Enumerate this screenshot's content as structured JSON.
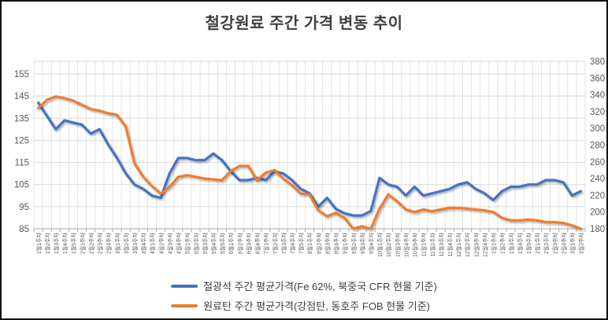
{
  "title": "철강원료 주간 가격 변동 추이",
  "legend": [
    {
      "id": "iron-ore",
      "label": "철광석 주간 평균가격(Fe 62%, 북중국 CFR 현물 기준)",
      "color": "#4472C4"
    },
    {
      "id": "coking-coal",
      "label": "원료탄 주간 평균가격(강점탄, 동호주 FOB 현물 기준)",
      "color": "#ED7D31"
    }
  ],
  "chart_data": {
    "type": "line",
    "title": "철강원료 주간 가격 변동 추이",
    "grid": true,
    "legend_position": "bottom",
    "x_labels": [
      "1월1주차",
      "1월2주차",
      "1월3주차",
      "1월4주차",
      "1월5주차",
      "2월1주차",
      "2월2주차",
      "2월3주차",
      "2월4주차",
      "3월1주차",
      "3월2주차",
      "3월3주차",
      "3월4주차",
      "4월1주차",
      "4월2주차",
      "4월3주차",
      "4월4주차",
      "5월1주차",
      "5월2주차",
      "5월3주차",
      "5월4주차",
      "5월5주차",
      "6월1주차",
      "6월2주차",
      "6월3주차",
      "6월4주차",
      "7월1주차",
      "7월2주차",
      "7월3주차",
      "7월4주차",
      "7월5주차",
      "8월1주차",
      "8월2주차",
      "8월3주차",
      "8월4주차",
      "9월1주차",
      "9월2주차",
      "9월3주차",
      "9월4주차",
      "10월1주차",
      "10월2주차",
      "10월3주차",
      "10월4주차",
      "10월5주차",
      "11월1주차",
      "11월2주차",
      "11월3주차",
      "11월4주차",
      "12월1주차",
      "12월2주차",
      "12월3주차",
      "12월4주차",
      "1월1주차",
      "1월2주차",
      "1월3주차",
      "1월4주차",
      "1월5주차",
      "2월1주차",
      "2월2주차",
      "2월3주차",
      "2월4주차",
      "3월1주차",
      "3월2주차"
    ],
    "left_axis": {
      "min": 85,
      "max": 155,
      "step": 10
    },
    "right_axis": {
      "min": 180,
      "max": 380,
      "step": 20
    },
    "series": [
      {
        "id": "iron-ore-series-line",
        "name": "철광석 주간 평균가격(Fe 62%, 북중국 CFR 현물 기준)",
        "axis": "left",
        "color": "#4472C4",
        "values": [
          142,
          136,
          130,
          134,
          133,
          132,
          128,
          130,
          123,
          117,
          110,
          105,
          103,
          100,
          99,
          110,
          117,
          117,
          116,
          116,
          119,
          116,
          111,
          107,
          107,
          108,
          107,
          111,
          110,
          107,
          103,
          101,
          95,
          99,
          94,
          92,
          91,
          91,
          93,
          108,
          105,
          104,
          100,
          104,
          100,
          101,
          102,
          103,
          105,
          106,
          103,
          101,
          98,
          102,
          104,
          104,
          105,
          105,
          107,
          107,
          106,
          100,
          102
        ]
      },
      {
        "id": "coking-coal-series-line",
        "name": "원료탄 주간 평균가격(강점탄, 동호주 FOB 현물 기준)",
        "axis": "right",
        "color": "#ED7D31",
        "values": [
          324,
          334,
          338,
          336,
          333,
          328,
          323,
          321,
          318,
          316,
          302,
          258,
          242,
          231,
          222,
          230,
          242,
          244,
          242,
          240,
          239,
          238,
          249,
          255,
          255,
          238,
          247,
          250,
          240,
          232,
          222,
          221,
          202,
          195,
          199,
          193,
          180,
          183,
          180,
          204,
          221,
          213,
          203,
          200,
          203,
          201,
          203,
          205,
          205,
          204,
          203,
          202,
          200,
          193,
          190,
          190,
          191,
          190,
          188,
          188,
          187,
          184,
          180
        ]
      }
    ]
  }
}
